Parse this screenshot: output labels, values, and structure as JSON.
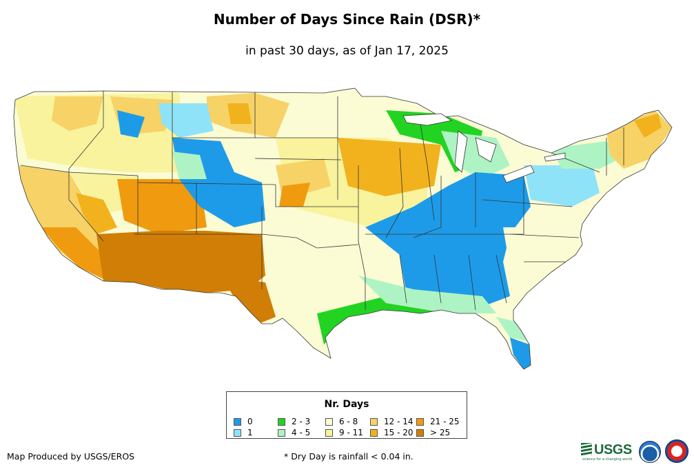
{
  "header": {
    "title": "Number of Days Since Rain (DSR)*",
    "subtitle": "in past 30 days, as of Jan 17, 2025"
  },
  "legend": {
    "title": "Nr. Days",
    "items": [
      {
        "label": "0",
        "color": "#1e9be8"
      },
      {
        "label": "1",
        "color": "#8fe3f8"
      },
      {
        "label": "2 - 3",
        "color": "#22d322"
      },
      {
        "label": "4 - 5",
        "color": "#aef3c3"
      },
      {
        "label": "6 - 8",
        "color": "#fbfbd4"
      },
      {
        "label": "9 - 11",
        "color": "#f8f39c"
      },
      {
        "label": "12 - 14",
        "color": "#f7d266"
      },
      {
        "label": "15 - 20",
        "color": "#f1b21e"
      },
      {
        "label": "21 - 25",
        "color": "#f09a10"
      },
      {
        "label": "> 25",
        "color": "#d07e06"
      }
    ]
  },
  "footer": {
    "credit": "Map Produced by USGS/EROS",
    "footnote": "* Dry Day is rainfall < 0.04 in."
  },
  "logos": {
    "usgs_text": "USGS",
    "usgs_tagline": "science for a changing world",
    "usgs_name": "usgs-logo",
    "noaa_name": "noaa-logo",
    "nws_name": "nws-logo"
  },
  "map": {
    "region": "Contiguous United States",
    "category_colors": {
      "zero": "#1e9be8",
      "one": "#8fe3f8",
      "two_three": "#22d322",
      "four_five": "#aef3c3",
      "six_eight": "#fbfbd4",
      "nine_eleven": "#f8f39c",
      "twelve_fourteen": "#f7d266",
      "fifteen_twenty": "#f1b21e",
      "twentyone_twentyfive": "#f09a10",
      "over_twentyfive": "#d07e06"
    }
  }
}
